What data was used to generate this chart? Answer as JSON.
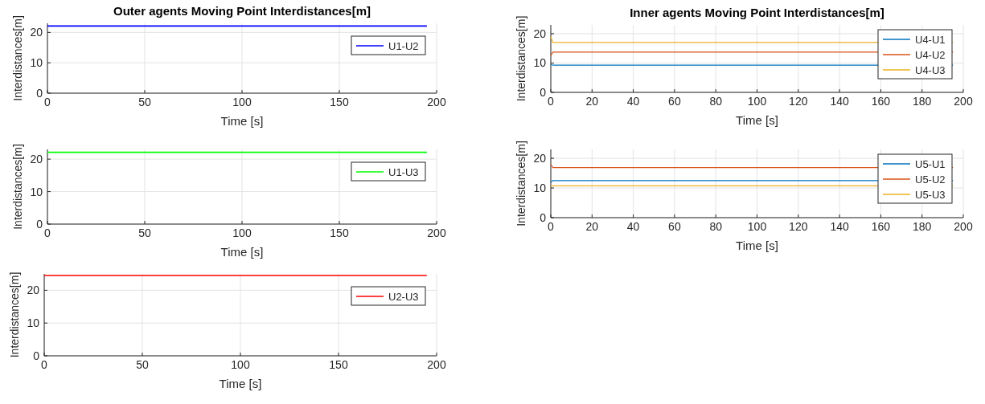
{
  "chart_data": [
    {
      "type": "line",
      "title": "Outer agents Moving Point Interdistances[m]",
      "xlabel": "Time [s]",
      "ylabel": "Interdistances[m]",
      "xlim": [
        0,
        200
      ],
      "xticks": [
        0,
        50,
        100,
        150,
        200
      ],
      "ylim": [
        0,
        23
      ],
      "yticks": [
        0,
        10,
        20
      ],
      "grid": true,
      "legend": "top right",
      "x": [
        0,
        100,
        195
      ],
      "series": [
        {
          "name": "U1-U2",
          "color": "#0000ff",
          "values": [
            22.1,
            22.1,
            22.1
          ]
        }
      ]
    },
    {
      "type": "line",
      "xlabel": "Time [s]",
      "ylabel": "Interdistances[m]",
      "xlim": [
        0,
        200
      ],
      "xticks": [
        0,
        50,
        100,
        150,
        200
      ],
      "ylim": [
        0,
        23
      ],
      "yticks": [
        0,
        10,
        20
      ],
      "grid": true,
      "legend": "top right",
      "x": [
        0,
        100,
        195
      ],
      "series": [
        {
          "name": "U1-U3",
          "color": "#00ff00",
          "values": [
            22.1,
            22.1,
            22.1
          ]
        }
      ]
    },
    {
      "type": "line",
      "xlabel": "Time [s]",
      "ylabel": "Interdistances[m]",
      "xlim": [
        0,
        200
      ],
      "xticks": [
        0,
        50,
        100,
        150,
        200
      ],
      "ylim": [
        0,
        25
      ],
      "yticks": [
        0,
        10,
        20
      ],
      "grid": true,
      "legend": "top right",
      "x": [
        0,
        100,
        195
      ],
      "series": [
        {
          "name": "U2-U3",
          "color": "#ff0000",
          "values": [
            24.5,
            24.5,
            24.5
          ]
        }
      ]
    },
    {
      "type": "line",
      "title": "Inner agents Moving Point Interdistances[m]",
      "xlabel": "Time [s]",
      "ylabel": "Interdistances[m]",
      "xlim": [
        0,
        200
      ],
      "xticks": [
        0,
        20,
        40,
        60,
        80,
        100,
        120,
        140,
        160,
        180,
        200
      ],
      "ylim": [
        0,
        23
      ],
      "yticks": [
        0,
        10,
        20
      ],
      "grid": true,
      "legend": "top right",
      "x": [
        0,
        1,
        100,
        195
      ],
      "series": [
        {
          "name": "U4-U1",
          "color": "#0072bd",
          "values": [
            9.5,
            9.3,
            9.3,
            9.3
          ]
        },
        {
          "name": "U4-U2",
          "color": "#d95319",
          "values": [
            12.5,
            13.7,
            13.7,
            13.7
          ]
        },
        {
          "name": "U4-U3",
          "color": "#edb120",
          "values": [
            19,
            17,
            17,
            17
          ]
        }
      ]
    },
    {
      "type": "line",
      "xlabel": "Time [s]",
      "ylabel": "Interdistances[m]",
      "xlim": [
        0,
        200
      ],
      "xticks": [
        0,
        20,
        40,
        60,
        80,
        100,
        120,
        140,
        160,
        180,
        200
      ],
      "ylim": [
        0,
        23
      ],
      "yticks": [
        0,
        10,
        20
      ],
      "grid": true,
      "legend": "top right",
      "x": [
        0,
        1,
        100,
        195
      ],
      "series": [
        {
          "name": "U5-U1",
          "color": "#0072bd",
          "values": [
            12,
            12.5,
            12.5,
            12.5
          ]
        },
        {
          "name": "U5-U2",
          "color": "#d95319",
          "values": [
            18,
            16.9,
            16.9,
            16.9
          ]
        },
        {
          "name": "U5-U3",
          "color": "#edb120",
          "values": [
            10.5,
            10.7,
            10.7,
            10.7
          ]
        }
      ]
    }
  ]
}
